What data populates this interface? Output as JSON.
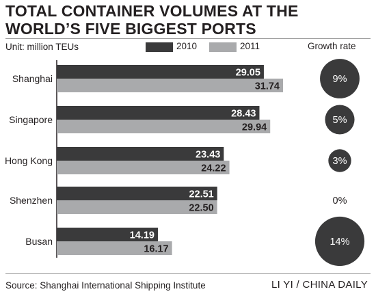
{
  "chart_data": {
    "type": "bar",
    "title": "TOTAL CONTAINER VOLUMES AT THE WORLD’S FIVE BIGGEST PORTS",
    "unit": "Unit: million TEUs",
    "categories": [
      "Shanghai",
      "Singapore",
      "Hong Kong",
      "Shenzhen",
      "Busan"
    ],
    "series": [
      {
        "name": "2010",
        "values": [
          29.05,
          28.43,
          23.43,
          22.51,
          14.19
        ],
        "labels": [
          "29.05",
          "28.43",
          "23.43",
          "22.51",
          "14.19"
        ],
        "color": "#3a3a3b"
      },
      {
        "name": "2011",
        "values": [
          31.74,
          29.94,
          24.22,
          22.5,
          16.17
        ],
        "labels": [
          "31.74",
          "29.94",
          "24.22",
          "22.50",
          "16.17"
        ],
        "color": "#a9aaac"
      }
    ],
    "growth_rate": {
      "title": "Growth rate",
      "values": [
        9,
        5,
        3,
        0,
        14
      ],
      "labels": [
        "9%",
        "5%",
        "3%",
        "0%",
        "14%"
      ],
      "circle_color": "#3a3a3b"
    },
    "xlim": [
      0,
      33
    ],
    "grid": false,
    "orientation": "horizontal",
    "legend_position": "top"
  },
  "source": "Source: Shanghai International Shipping Institute",
  "credit": "LI YI / CHINA DAILY"
}
